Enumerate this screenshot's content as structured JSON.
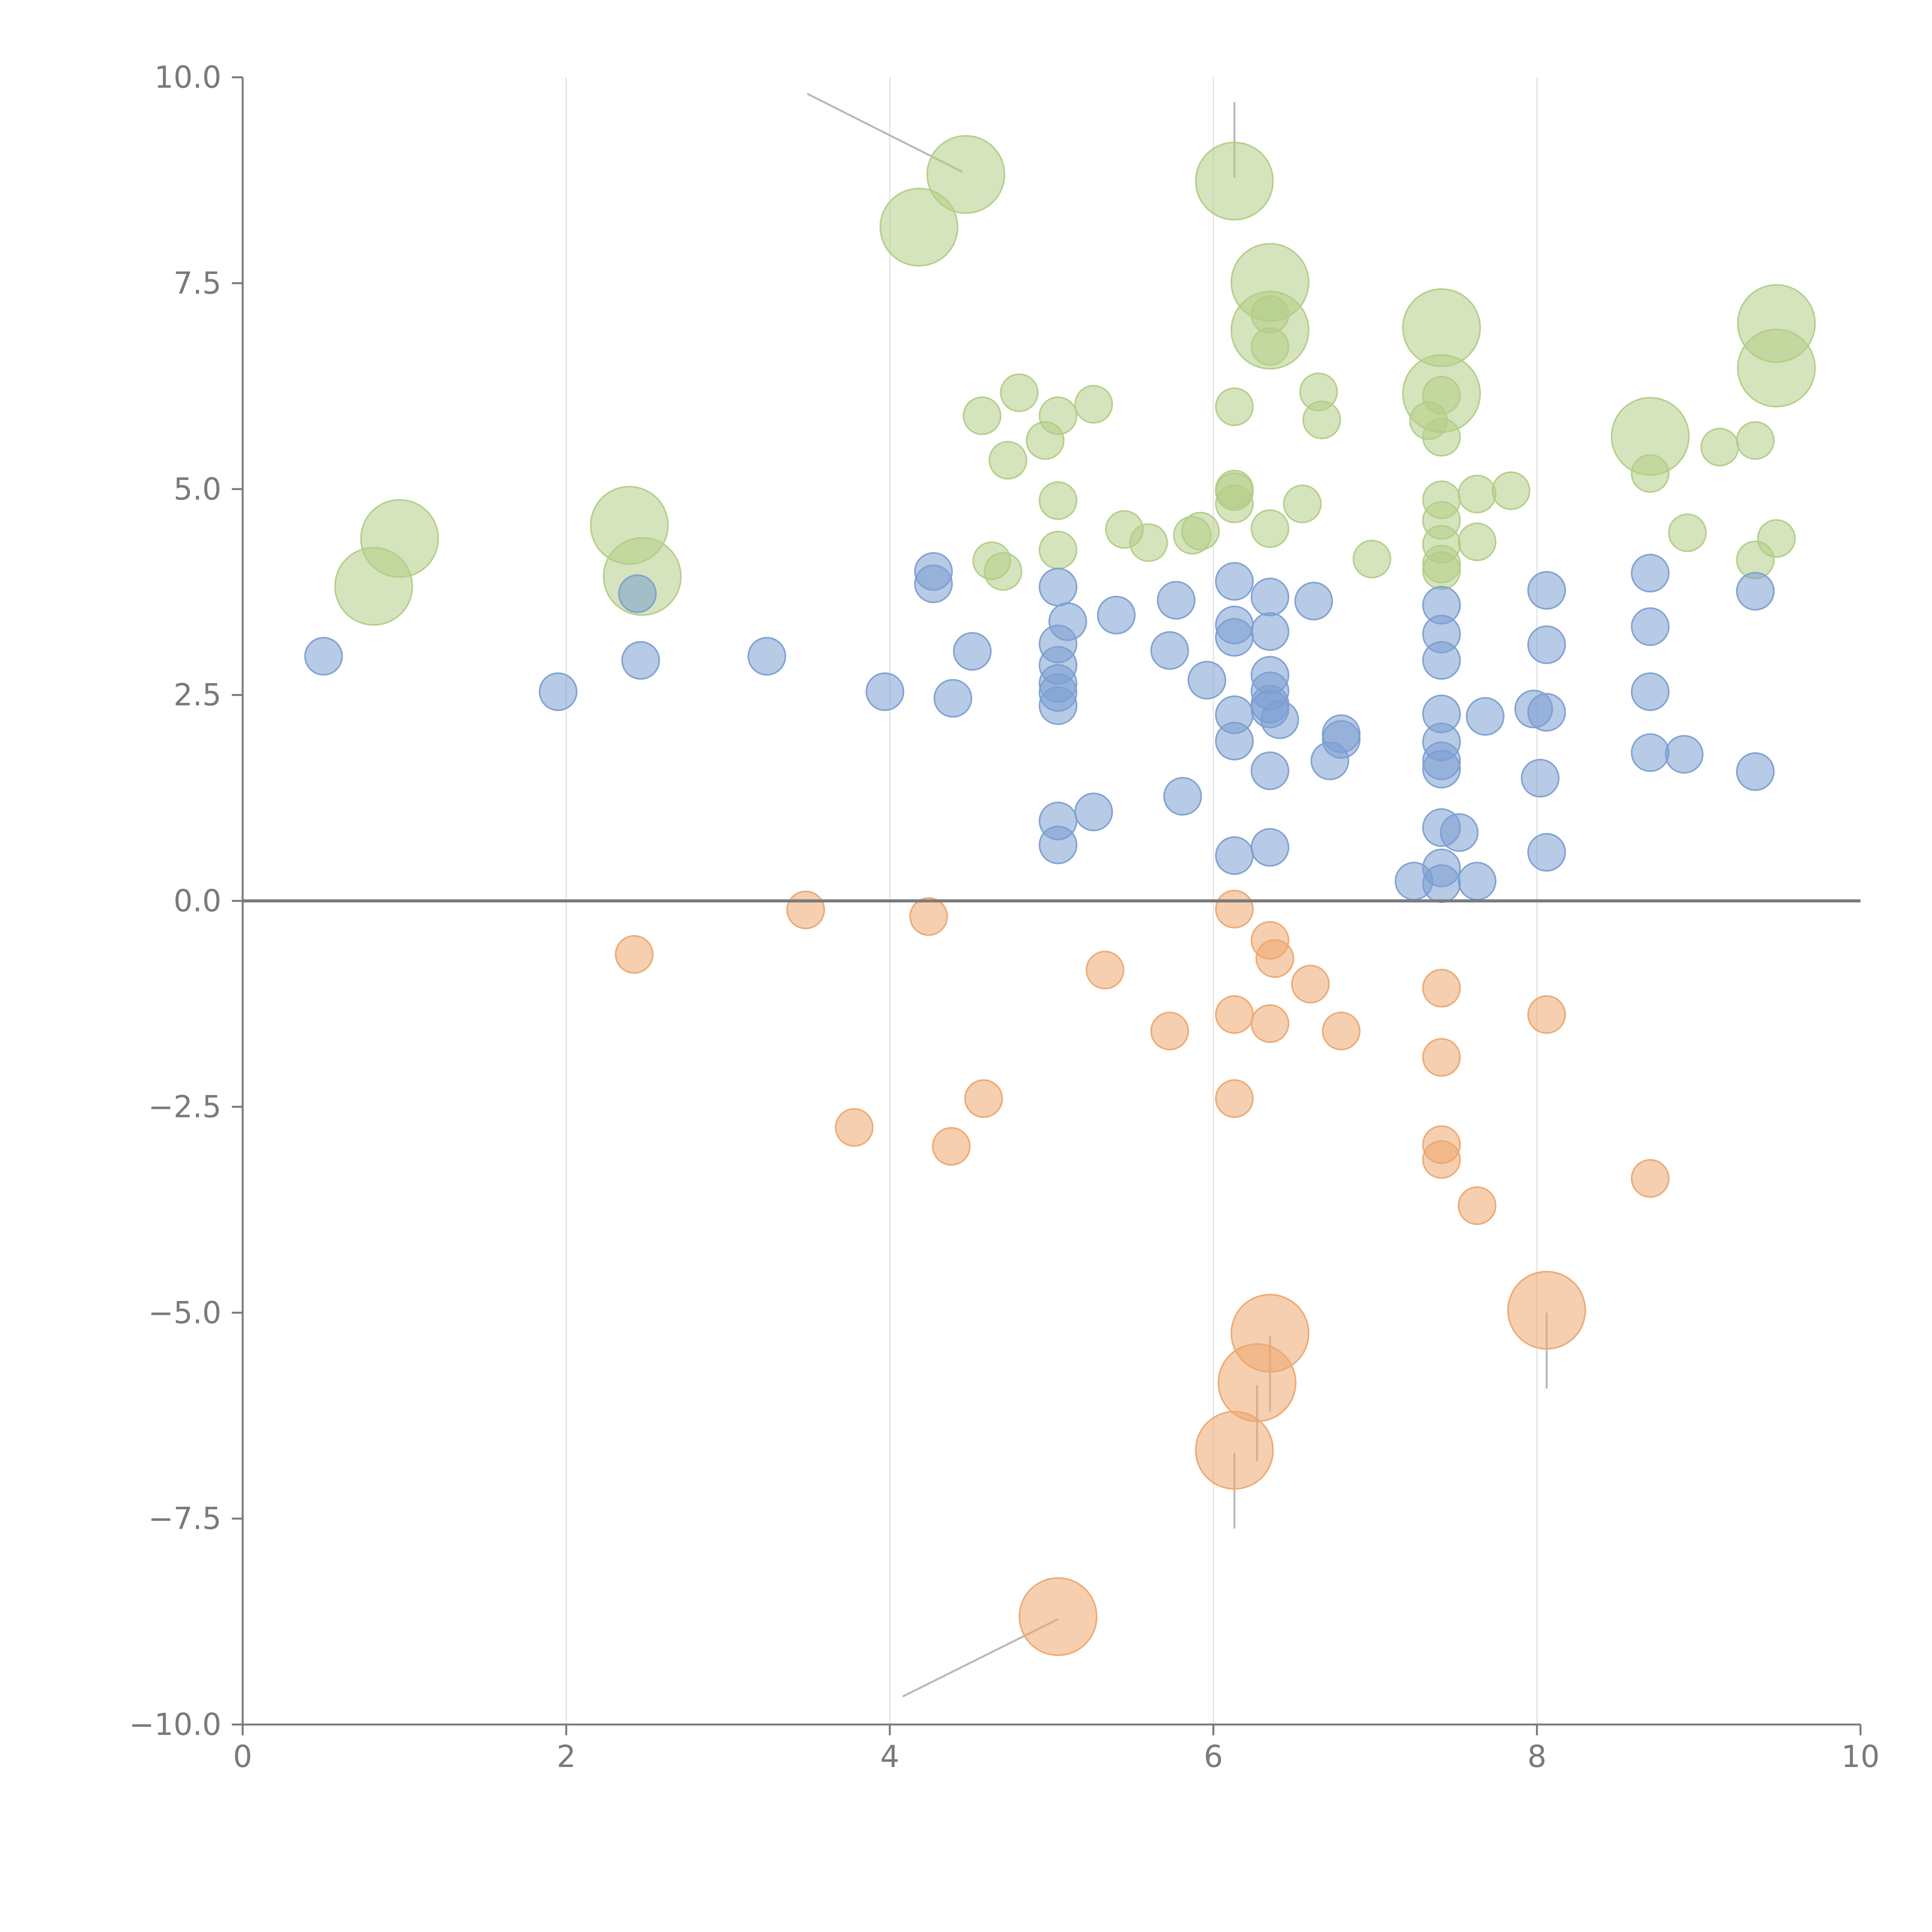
{
  "chart_data": {
    "type": "scatter",
    "title": "",
    "xlabel": "",
    "ylabel": "",
    "xlim": [
      0,
      10
    ],
    "ylim": [
      -10,
      10
    ],
    "x_ticks": [
      0,
      2,
      4,
      6,
      8,
      10
    ],
    "x_tick_labels": [
      "0",
      "2",
      "4",
      "6",
      "8",
      "10"
    ],
    "y_ticks": [
      -10,
      -7.5,
      -5,
      -2.5,
      0,
      2.5,
      5,
      7.5,
      10
    ],
    "y_tick_labels": [
      "−10.0",
      "−7.5",
      "−5.0",
      "−2.5",
      "0.0",
      "2.5",
      "5.0",
      "7.5",
      "10.0"
    ],
    "vertical_gridlines_at": [
      2,
      4,
      6,
      8
    ],
    "zero_line": true,
    "colors": {
      "blue": "#7c9fd1",
      "green": "#b2cd87",
      "orange": "#eca870",
      "axis": "#7a7a7a",
      "tick_text": "#7a7a7a",
      "grid": "#e2e2e2",
      "leader": "#b8b8b8"
    },
    "series": [
      {
        "name": "green",
        "color": "#b2cd87",
        "points": [
          [
            4.47,
            8.82,
            1
          ],
          [
            4.18,
            8.18,
            1
          ],
          [
            6.13,
            8.74,
            1
          ],
          [
            6.35,
            7.51,
            1
          ],
          [
            6.35,
            6.93,
            1
          ],
          [
            6.35,
            7.12,
            0
          ],
          [
            6.35,
            6.73,
            0
          ],
          [
            7.41,
            6.96,
            1
          ],
          [
            7.41,
            6.16,
            1
          ],
          [
            7.41,
            6.14,
            0
          ],
          [
            7.41,
            5.63,
            0
          ],
          [
            7.33,
            5.83,
            0
          ],
          [
            9.48,
            7.01,
            1
          ],
          [
            9.48,
            6.47,
            1
          ],
          [
            8.7,
            5.64,
            1
          ],
          [
            8.7,
            5.19,
            0
          ],
          [
            9.13,
            5.51,
            0
          ],
          [
            9.35,
            5.59,
            0
          ],
          [
            8.93,
            4.47,
            0
          ],
          [
            9.35,
            4.14,
            0
          ],
          [
            9.48,
            4.4,
            0
          ],
          [
            0.81,
            3.82,
            1
          ],
          [
            0.97,
            4.4,
            1
          ],
          [
            2.39,
            4.56,
            1
          ],
          [
            2.47,
            3.94,
            1
          ],
          [
            4.57,
            5.89,
            0
          ],
          [
            4.8,
            6.17,
            0
          ],
          [
            5.26,
            6.03,
            0
          ],
          [
            5.04,
            5.89,
            0
          ],
          [
            4.96,
            5.59,
            0
          ],
          [
            4.73,
            5.35,
            0
          ],
          [
            5.04,
            4.86,
            0
          ],
          [
            4.63,
            4.13,
            0
          ],
          [
            4.7,
            4.0,
            0
          ],
          [
            5.04,
            4.26,
            0
          ],
          [
            5.45,
            4.51,
            0
          ],
          [
            5.6,
            4.35,
            0
          ],
          [
            5.87,
            4.44,
            0
          ],
          [
            5.92,
            4.49,
            0
          ],
          [
            6.13,
            6.0,
            0
          ],
          [
            6.13,
            5.0,
            0
          ],
          [
            6.13,
            4.82,
            0
          ],
          [
            6.13,
            4.97,
            0
          ],
          [
            6.35,
            4.52,
            0
          ],
          [
            6.55,
            4.82,
            0
          ],
          [
            6.65,
            6.18,
            0
          ],
          [
            6.67,
            5.84,
            0
          ],
          [
            6.98,
            4.15,
            0
          ],
          [
            7.41,
            4.87,
            0
          ],
          [
            7.41,
            4.62,
            0
          ],
          [
            7.41,
            4.33,
            0
          ],
          [
            7.41,
            4.09,
            0
          ],
          [
            7.41,
            4.01,
            0
          ],
          [
            7.63,
            4.94,
            0
          ],
          [
            7.63,
            4.36,
            0
          ],
          [
            7.84,
            4.98,
            0
          ]
        ]
      },
      {
        "name": "blue",
        "color": "#7c9fd1",
        "points": [
          [
            0.5,
            2.97,
            0
          ],
          [
            1.95,
            2.54,
            0
          ],
          [
            2.44,
            3.73,
            0
          ],
          [
            2.46,
            2.92,
            0
          ],
          [
            3.24,
            2.97,
            0
          ],
          [
            3.97,
            2.54,
            0
          ],
          [
            4.27,
            4.0,
            0
          ],
          [
            4.27,
            3.85,
            0
          ],
          [
            4.39,
            2.46,
            0
          ],
          [
            4.51,
            3.03,
            0
          ],
          [
            5.04,
            3.81,
            0
          ],
          [
            5.04,
            3.12,
            0
          ],
          [
            5.04,
            2.86,
            0
          ],
          [
            5.04,
            2.64,
            0
          ],
          [
            5.04,
            2.53,
            0
          ],
          [
            5.04,
            2.37,
            0
          ],
          [
            5.04,
            0.97,
            0
          ],
          [
            5.04,
            0.68,
            0
          ],
          [
            5.1,
            3.39,
            0
          ],
          [
            5.26,
            1.08,
            0
          ],
          [
            5.4,
            3.47,
            0
          ],
          [
            5.73,
            3.04,
            0
          ],
          [
            5.77,
            3.65,
            0
          ],
          [
            5.81,
            1.27,
            0
          ],
          [
            5.96,
            2.68,
            0
          ],
          [
            6.13,
            3.88,
            0
          ],
          [
            6.13,
            3.35,
            0
          ],
          [
            6.13,
            3.2,
            0
          ],
          [
            6.13,
            2.26,
            0
          ],
          [
            6.13,
            1.94,
            0
          ],
          [
            6.13,
            0.55,
            0
          ],
          [
            6.35,
            3.69,
            0
          ],
          [
            6.35,
            3.27,
            0
          ],
          [
            6.35,
            2.74,
            0
          ],
          [
            6.35,
            2.55,
            0
          ],
          [
            6.35,
            2.39,
            0
          ],
          [
            6.35,
            2.33,
            0
          ],
          [
            6.41,
            2.2,
            0
          ],
          [
            6.35,
            1.58,
            0
          ],
          [
            6.35,
            0.65,
            0
          ],
          [
            6.62,
            3.64,
            0
          ],
          [
            6.72,
            1.7,
            0
          ],
          [
            6.79,
            2.03,
            0
          ],
          [
            6.79,
            1.96,
            0
          ],
          [
            7.24,
            0.24,
            0
          ],
          [
            7.41,
            3.59,
            0
          ],
          [
            7.41,
            3.24,
            0
          ],
          [
            7.41,
            2.92,
            0
          ],
          [
            7.41,
            2.27,
            0
          ],
          [
            7.41,
            1.93,
            0
          ],
          [
            7.41,
            1.7,
            0
          ],
          [
            7.41,
            1.6,
            0
          ],
          [
            7.41,
            0.89,
            0
          ],
          [
            7.41,
            0.4,
            0
          ],
          [
            7.41,
            0.21,
            0
          ],
          [
            7.52,
            0.83,
            0
          ],
          [
            7.63,
            0.24,
            0
          ],
          [
            7.68,
            2.24,
            0
          ],
          [
            7.98,
            2.33,
            0
          ],
          [
            8.02,
            1.49,
            0
          ],
          [
            8.06,
            3.77,
            0
          ],
          [
            8.06,
            3.11,
            0
          ],
          [
            8.06,
            2.29,
            0
          ],
          [
            8.06,
            0.59,
            0
          ],
          [
            8.7,
            3.98,
            0
          ],
          [
            8.7,
            3.33,
            0
          ],
          [
            8.7,
            2.54,
            0
          ],
          [
            8.7,
            1.8,
            0
          ],
          [
            8.91,
            1.78,
            0
          ],
          [
            9.35,
            3.76,
            0
          ],
          [
            9.35,
            1.57,
            0
          ]
        ]
      },
      {
        "name": "orange",
        "color": "#eca870",
        "points": [
          [
            2.42,
            -0.65,
            0
          ],
          [
            3.48,
            -0.11,
            0
          ],
          [
            4.24,
            -0.19,
            0
          ],
          [
            3.78,
            -2.75,
            0
          ],
          [
            4.38,
            -2.98,
            0
          ],
          [
            4.58,
            -2.4,
            0
          ],
          [
            5.33,
            -0.84,
            0
          ],
          [
            5.73,
            -1.58,
            0
          ],
          [
            6.13,
            -0.1,
            0
          ],
          [
            6.13,
            -1.38,
            0
          ],
          [
            6.13,
            -2.4,
            0
          ],
          [
            6.35,
            -0.48,
            0
          ],
          [
            6.38,
            -0.7,
            0
          ],
          [
            6.35,
            -1.49,
            0
          ],
          [
            6.6,
            -1.01,
            0
          ],
          [
            6.79,
            -1.58,
            0
          ],
          [
            7.41,
            -1.06,
            0
          ],
          [
            7.41,
            -1.9,
            0
          ],
          [
            7.41,
            -2.96,
            0
          ],
          [
            7.41,
            -3.14,
            0
          ],
          [
            7.63,
            -3.7,
            0
          ],
          [
            8.06,
            -1.38,
            0
          ],
          [
            8.7,
            -3.37,
            0
          ],
          [
            5.04,
            -8.69,
            1
          ],
          [
            6.13,
            -6.67,
            1
          ],
          [
            6.27,
            -5.85,
            1
          ],
          [
            6.35,
            -5.25,
            1
          ],
          [
            8.06,
            -4.97,
            1
          ]
        ]
      }
    ]
  }
}
